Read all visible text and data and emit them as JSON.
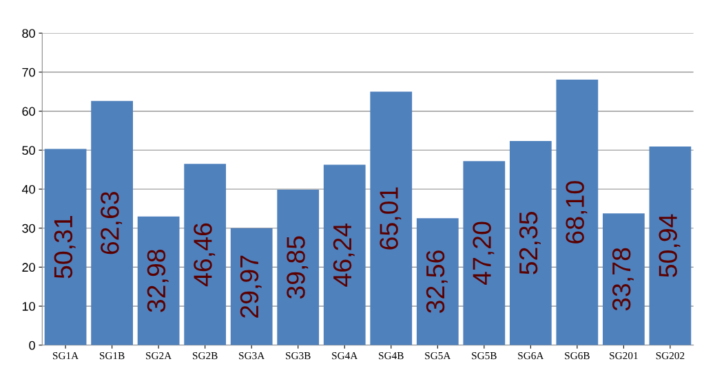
{
  "chart_data": {
    "type": "bar",
    "categories": [
      "SG1A",
      "SG1B",
      "SG2A",
      "SG2B",
      "SG3A",
      "SG3B",
      "SG4A",
      "SG4B",
      "SG5A",
      "SG5B",
      "SG6A",
      "SG6B",
      "SG201",
      "SG202"
    ],
    "values": [
      50.31,
      62.63,
      32.98,
      46.46,
      29.97,
      39.85,
      46.24,
      65.01,
      32.56,
      47.2,
      52.35,
      68.1,
      33.78,
      50.94
    ],
    "value_labels": [
      "50,31",
      "62,63",
      "32,98",
      "46,46",
      "29,97",
      "39,85",
      "46,24",
      "65,01",
      "32,56",
      "47,20",
      "52,35",
      "68,10",
      "33,78",
      "50,94"
    ],
    "color": "#4f81bd",
    "ylim": [
      0,
      80
    ],
    "yticks": [
      0,
      10,
      20,
      30,
      40,
      50,
      60,
      70,
      80
    ],
    "grid": "y",
    "legend": false
  }
}
